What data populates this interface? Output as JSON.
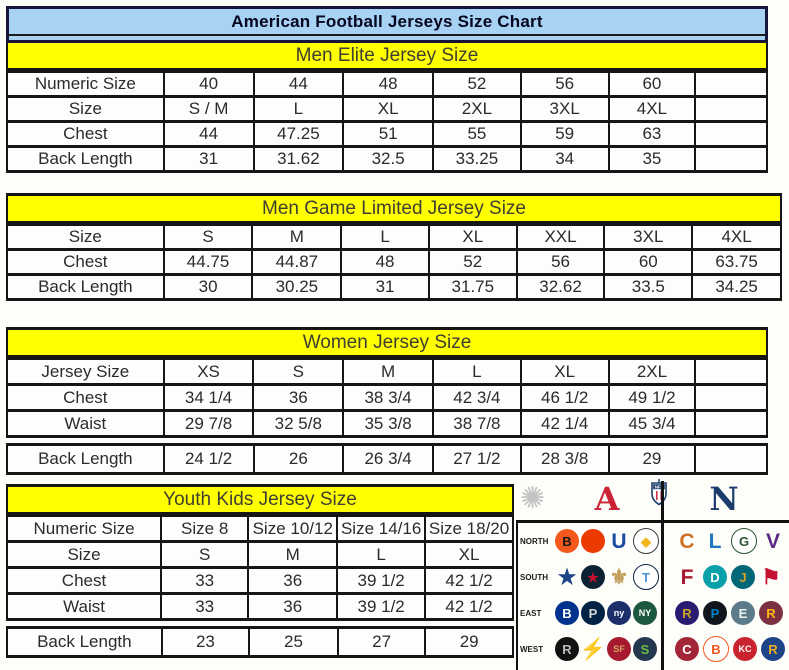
{
  "title": "American Football Jerseys Size Chart",
  "colors": {
    "title_bar_bg": "#a7d2f3",
    "band_bg": "#ffff00",
    "border": "#161616",
    "afc_red": "#cc2336",
    "nfc_blue": "#1b3d6d"
  },
  "tables": [
    {
      "id": "men-elite",
      "header": "Men Elite Jersey Size",
      "rows": [
        [
          "Numeric Size",
          "40",
          "44",
          "48",
          "52",
          "56",
          "60",
          ""
        ],
        [
          "Size",
          "S / M",
          "L",
          "XL",
          "2XL",
          "3XL",
          "4XL",
          ""
        ],
        [
          "Chest",
          "44",
          "47.25",
          "51",
          "55",
          "59",
          "63",
          ""
        ],
        [
          "Back Length",
          "31",
          "31.62",
          "32.5",
          "33.25",
          "34",
          "35",
          ""
        ]
      ]
    },
    {
      "id": "men-game-limited",
      "header": "Men Game Limited Jersey Size",
      "rows": [
        [
          "Size",
          "S",
          "M",
          "L",
          "XL",
          "XXL",
          "3XL",
          "4XL"
        ],
        [
          "Chest",
          "44.75",
          "44.87",
          "48",
          "52",
          "56",
          "60",
          "63.75"
        ],
        [
          "Back Length",
          "30",
          "30.25",
          "31",
          "31.75",
          "32.62",
          "33.5",
          "34.25"
        ]
      ]
    },
    {
      "id": "women",
      "header": "Women Jersey Size",
      "rows": [
        [
          "Jersey Size",
          "XS",
          "S",
          "M",
          "L",
          "XL",
          "2XL",
          ""
        ],
        [
          "Chest",
          "34 1/4",
          "36",
          "38 3/4",
          "42 3/4",
          "46 1/2",
          "49 1/2",
          ""
        ],
        [
          "Waist",
          "29 7/8",
          "32 5/8",
          "35 3/8",
          "38 7/8",
          "42 1/4",
          "45 3/4",
          ""
        ]
      ],
      "footer_row": [
        "Back Length",
        "24 1/2",
        "26",
        "26 3/4",
        "27 1/2",
        "28 3/8",
        "29",
        ""
      ]
    },
    {
      "id": "youth-kids",
      "header": "Youth Kids Jersey Size",
      "rows": [
        [
          "Numeric Size",
          "Size 8",
          "Size 10/12",
          "Size 14/16",
          "Size 18/20"
        ],
        [
          "Size",
          "S",
          "M",
          "L",
          "XL"
        ],
        [
          "Chest",
          "33",
          "36",
          "39 1/2",
          "42 1/2"
        ],
        [
          "Waist",
          "33",
          "36",
          "39 1/2",
          "42 1/2"
        ]
      ],
      "footer_row": [
        "Back Length",
        "23",
        "25",
        "27",
        "29"
      ]
    }
  ],
  "logo_grid": {
    "header": {
      "starburst_glyph": "✺",
      "afc_letter": "A",
      "nfl_label": "NFL",
      "nfc_letter": "N"
    },
    "rows": [
      {
        "label": "NORTH",
        "teams": [
          {
            "team": "bengals",
            "glyph": "B",
            "bg": "#f4581c",
            "fg": "#161616"
          },
          {
            "team": "browns",
            "glyph": "",
            "bg": "#ec3b00",
            "fg": "#ffffff"
          },
          {
            "team": "colts",
            "glyph": "U",
            "fg": "#1a4ca1",
            "plain": true
          },
          {
            "team": "steelers",
            "glyph": "◆",
            "bg": "#ffffff",
            "fg": "#f2b71c",
            "border": "#3a3a3a"
          },
          {
            "team": "bears",
            "glyph": "C",
            "fg": "#cd7229",
            "plain": true
          },
          {
            "team": "lions",
            "glyph": "L",
            "fg": "#1f76c2",
            "plain": true
          },
          {
            "team": "packers",
            "glyph": "G",
            "bg": "#ffffff",
            "fg": "#2c5234",
            "border": "#2c5234"
          },
          {
            "team": "vikings",
            "glyph": "V",
            "fg": "#582c83",
            "plain": true
          }
        ]
      },
      {
        "label": "SOUTH",
        "teams": [
          {
            "team": "cowboys",
            "glyph": "★",
            "fg": "#1e4488",
            "plain": true
          },
          {
            "team": "texans",
            "glyph": "★",
            "bg": "#0b2232",
            "fg": "#c41230"
          },
          {
            "team": "saints",
            "glyph": "⚜",
            "fg": "#c3a05c",
            "plain": true
          },
          {
            "team": "titans",
            "glyph": "T",
            "bg": "#ffffff",
            "fg": "#4b92db",
            "border": "#0c2340"
          },
          {
            "team": "falcons",
            "glyph": "F",
            "fg": "#a6192e",
            "plain": true
          },
          {
            "team": "dolphins",
            "glyph": "D",
            "bg": "#0aa0aa",
            "fg": "#ffffff"
          },
          {
            "team": "jaguars",
            "glyph": "J",
            "bg": "#006778",
            "fg": "#d7a22a"
          },
          {
            "team": "buccaneers",
            "glyph": "⚑",
            "fg": "#c41230",
            "plain": true
          }
        ]
      },
      {
        "label": "EAST",
        "teams": [
          {
            "team": "bills",
            "glyph": "B",
            "bg": "#00338d",
            "fg": "#ffffff"
          },
          {
            "team": "patriots",
            "glyph": "P",
            "bg": "#002244",
            "fg": "#d6d6d6"
          },
          {
            "team": "giants",
            "glyph": "ny",
            "bg": "#1c2f6b",
            "fg": "#ffffff"
          },
          {
            "team": "jets",
            "glyph": "NY",
            "bg": "#1c5740",
            "fg": "#ffffff"
          },
          {
            "team": "ravens",
            "glyph": "R",
            "bg": "#2a1a70",
            "fg": "#c9a227"
          },
          {
            "team": "panthers",
            "glyph": "P",
            "bg": "#11161c",
            "fg": "#0085ca"
          },
          {
            "team": "eagles",
            "glyph": "E",
            "bg": "#5b7b8a",
            "fg": "#eef2f2"
          },
          {
            "team": "redskins",
            "glyph": "R",
            "bg": "#7c3141",
            "fg": "#ffb612"
          }
        ]
      },
      {
        "label": "WEST",
        "teams": [
          {
            "team": "raiders",
            "glyph": "R",
            "bg": "#111111",
            "fg": "#b8bdbf"
          },
          {
            "team": "chargers",
            "glyph": "⚡",
            "fg": "#f6bd27",
            "plain": true
          },
          {
            "team": "49ers",
            "glyph": "SF",
            "bg": "#a6192e",
            "fg": "#cfa960"
          },
          {
            "team": "seahawks",
            "glyph": "S",
            "bg": "#23374f",
            "fg": "#6cbe45"
          },
          {
            "team": "cardinals",
            "glyph": "C",
            "bg": "#a32638",
            "fg": "#ffffff"
          },
          {
            "team": "broncos",
            "glyph": "B",
            "bg": "#ffffff",
            "fg": "#f4581c",
            "border": "#f4581c"
          },
          {
            "team": "chiefs",
            "glyph": "KC",
            "bg": "#ca2430",
            "fg": "#ffffff"
          },
          {
            "team": "rams",
            "glyph": "R",
            "bg": "#1e4488",
            "fg": "#eead1e"
          }
        ]
      }
    ]
  }
}
